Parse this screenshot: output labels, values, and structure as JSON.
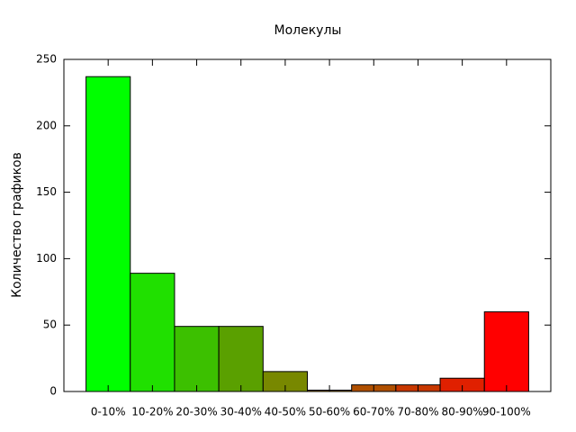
{
  "chart_data": {
    "type": "bar",
    "title": "Молекулы",
    "y_label": "Количество графиков",
    "categories": [
      "0-10%",
      "10-20%",
      "20-30%",
      "30-40%",
      "40-50%",
      "50-60%",
      "60-70%",
      "70-80%",
      "80-90%",
      "90-100%"
    ],
    "values": [
      237,
      89,
      49,
      49,
      15,
      1,
      5,
      5,
      10,
      60
    ],
    "colors": [
      "#00ff00",
      "#20e000",
      "#3cc000",
      "#5aa000",
      "#788800",
      "#906800",
      "#b05000",
      "#c83800",
      "#e02000",
      "#ff0000"
    ],
    "ylim": [
      0,
      250
    ],
    "yticks": [
      0,
      50,
      100,
      150,
      200,
      250
    ],
    "grid": false
  }
}
